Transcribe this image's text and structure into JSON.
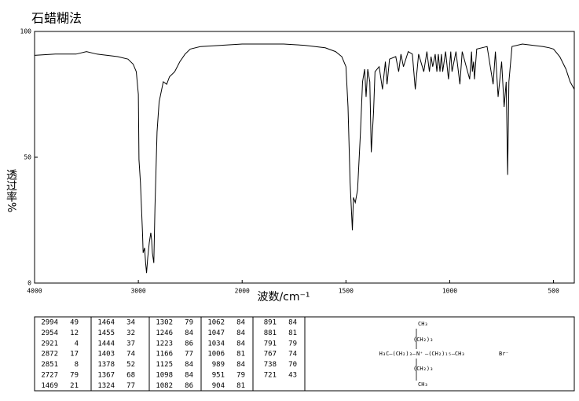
{
  "chart_data": {
    "type": "line",
    "title": "石蜡糊法",
    "x_label": "波数/cm⁻¹",
    "y_label": "透过率%",
    "xlim": [
      4000,
      400
    ],
    "x_scale_break": 2000,
    "xticks": [
      4000,
      3000,
      2000,
      1500,
      1000,
      500
    ],
    "ylim": [
      0,
      100
    ],
    "yticks": [
      0,
      50,
      100
    ],
    "x": [
      4000,
      3800,
      3600,
      3500,
      3400,
      3300,
      3200,
      3100,
      3050,
      3020,
      3000,
      2994,
      2980,
      2960,
      2954,
      2940,
      2930,
      2921,
      2910,
      2895,
      2880,
      2872,
      2865,
      2851,
      2840,
      2820,
      2800,
      2780,
      2760,
      2727,
      2700,
      2650,
      2600,
      2550,
      2500,
      2400,
      2200,
      2000,
      1900,
      1800,
      1700,
      1600,
      1550,
      1520,
      1500,
      1490,
      1480,
      1469,
      1464,
      1455,
      1444,
      1430,
      1420,
      1410,
      1403,
      1395,
      1385,
      1378,
      1367,
      1360,
      1340,
      1324,
      1310,
      1302,
      1290,
      1260,
      1246,
      1235,
      1223,
      1200,
      1180,
      1166,
      1150,
      1125,
      1110,
      1098,
      1090,
      1082,
      1070,
      1062,
      1055,
      1047,
      1040,
      1034,
      1020,
      1006,
      995,
      989,
      970,
      951,
      940,
      904,
      895,
      891,
      885,
      881,
      870,
      820,
      791,
      780,
      767,
      750,
      738,
      728,
      721,
      715,
      700,
      650,
      600,
      550,
      520,
      500,
      470,
      440,
      420,
      400
    ],
    "series": [
      {
        "color": "#000000",
        "values": [
          90.5,
          91,
          91,
          92,
          91,
          90.5,
          90,
          89,
          87,
          84,
          75,
          49,
          40,
          20,
          12,
          14,
          8,
          4,
          10,
          16,
          20,
          17,
          12,
          8,
          30,
          60,
          72,
          76,
          80,
          79,
          82,
          84,
          88,
          91,
          93,
          94,
          94.5,
          95,
          95,
          95,
          94.5,
          93.5,
          92,
          90,
          86,
          70,
          40,
          21,
          34,
          32,
          37,
          60,
          80,
          85,
          74,
          85,
          80,
          52,
          68,
          84,
          86,
          77,
          88,
          79,
          89,
          90,
          84,
          91,
          86,
          92,
          91,
          77,
          91,
          84,
          92,
          84,
          90,
          86,
          91,
          84,
          91,
          84,
          91,
          84,
          92,
          81,
          92,
          84,
          92,
          79,
          92,
          81,
          92,
          84,
          88,
          81,
          93,
          94,
          79,
          92,
          74,
          88,
          70,
          80,
          43,
          80,
          94,
          95,
          94.5,
          94,
          93.5,
          93,
          90,
          85,
          80,
          77
        ]
      }
    ]
  },
  "peak_table": [
    [
      [
        "2994",
        "49"
      ],
      [
        "2954",
        "12"
      ],
      [
        "2921",
        "4"
      ],
      [
        "2872",
        "17"
      ],
      [
        "2851",
        "8"
      ],
      [
        "2727",
        "79"
      ],
      [
        "1469",
        "21"
      ]
    ],
    [
      [
        "1464",
        "34"
      ],
      [
        "1455",
        "32"
      ],
      [
        "1444",
        "37"
      ],
      [
        "1403",
        "74"
      ],
      [
        "1378",
        "52"
      ],
      [
        "1367",
        "68"
      ],
      [
        "1324",
        "77"
      ]
    ],
    [
      [
        "1302",
        "79"
      ],
      [
        "1246",
        "84"
      ],
      [
        "1223",
        "86"
      ],
      [
        "1166",
        "77"
      ],
      [
        "1125",
        "84"
      ],
      [
        "1098",
        "84"
      ],
      [
        "1082",
        "86"
      ]
    ],
    [
      [
        "1062",
        "84"
      ],
      [
        "1047",
        "84"
      ],
      [
        "1034",
        "84"
      ],
      [
        "1006",
        "81"
      ],
      [
        "989",
        "84"
      ],
      [
        "951",
        "79"
      ],
      [
        "904",
        "81"
      ]
    ],
    [
      [
        "891",
        "84"
      ],
      [
        "881",
        "81"
      ],
      [
        "791",
        "79"
      ],
      [
        "767",
        "74"
      ],
      [
        "738",
        "70"
      ],
      [
        "721",
        "43"
      ]
    ]
  ],
  "structure": {
    "top": "CH₃",
    "top_chain": "(CH₂)₃",
    "left": "H₃C—(CH₂)₃—",
    "center": "N⁺",
    "right": "—(CH₂)₁₅—CH₃",
    "anion": "Br⁻",
    "bottom_chain": "(CH₂)₃",
    "bottom": "CH₃"
  }
}
